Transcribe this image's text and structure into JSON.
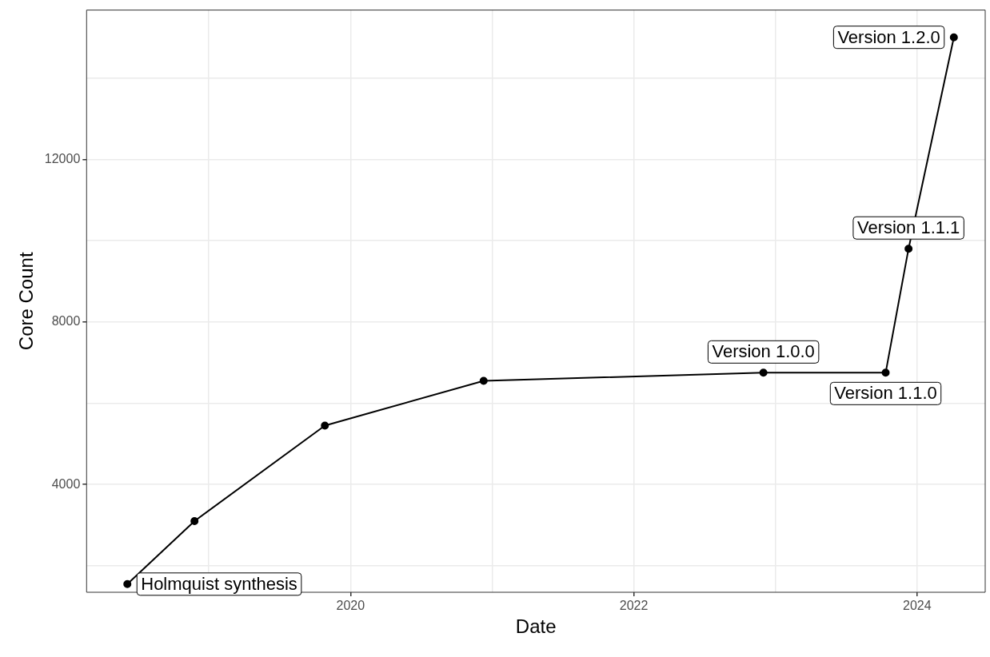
{
  "chart_data": {
    "type": "line",
    "xlabel": "Date",
    "ylabel": "Core Count",
    "x": [
      "2018-06-05",
      "2018-11-25",
      "2019-10-27",
      "2020-12-10",
      "2022-12-01",
      "2023-10-12",
      "2023-12-10",
      "2024-04-05"
    ],
    "series": [
      {
        "color": "#000000",
        "values": [
          1550,
          3100,
          5450,
          6550,
          6750,
          6750,
          9800,
          15000
        ]
      }
    ],
    "marker": "circle",
    "line_style": "solid",
    "grid": true,
    "legend": false,
    "xlim": [
      "2018-02-20",
      "2024-06-25"
    ],
    "xticks": [
      {
        "value": "2019",
        "label": null
      },
      "2020",
      {
        "value": "2021",
        "label": null
      },
      "2022",
      {
        "value": "2023",
        "label": null
      },
      "2024"
    ],
    "ylim": [
      1350,
      15670
    ],
    "yticks": [
      {
        "value": 2000,
        "label": null
      },
      4000,
      {
        "value": 6000,
        "label": null
      },
      8000,
      {
        "value": 10000,
        "label": null
      },
      12000,
      {
        "value": 14000,
        "label": null
      }
    ],
    "annotations": [
      {
        "text": "Holmquist synthesis",
        "x": "2018-06-05",
        "y": 1550
      },
      {
        "text": "Version 1.0.0",
        "x": "2022-12-01",
        "y": 6750
      },
      {
        "text": "Version 1.1.0",
        "x": "2023-10-12",
        "y": 6750
      },
      {
        "text": "Version 1.1.1",
        "x": "2023-12-10",
        "y": 9800
      },
      {
        "text": "Version 1.2.0",
        "x": "2024-04-05",
        "y": 15000
      }
    ]
  }
}
